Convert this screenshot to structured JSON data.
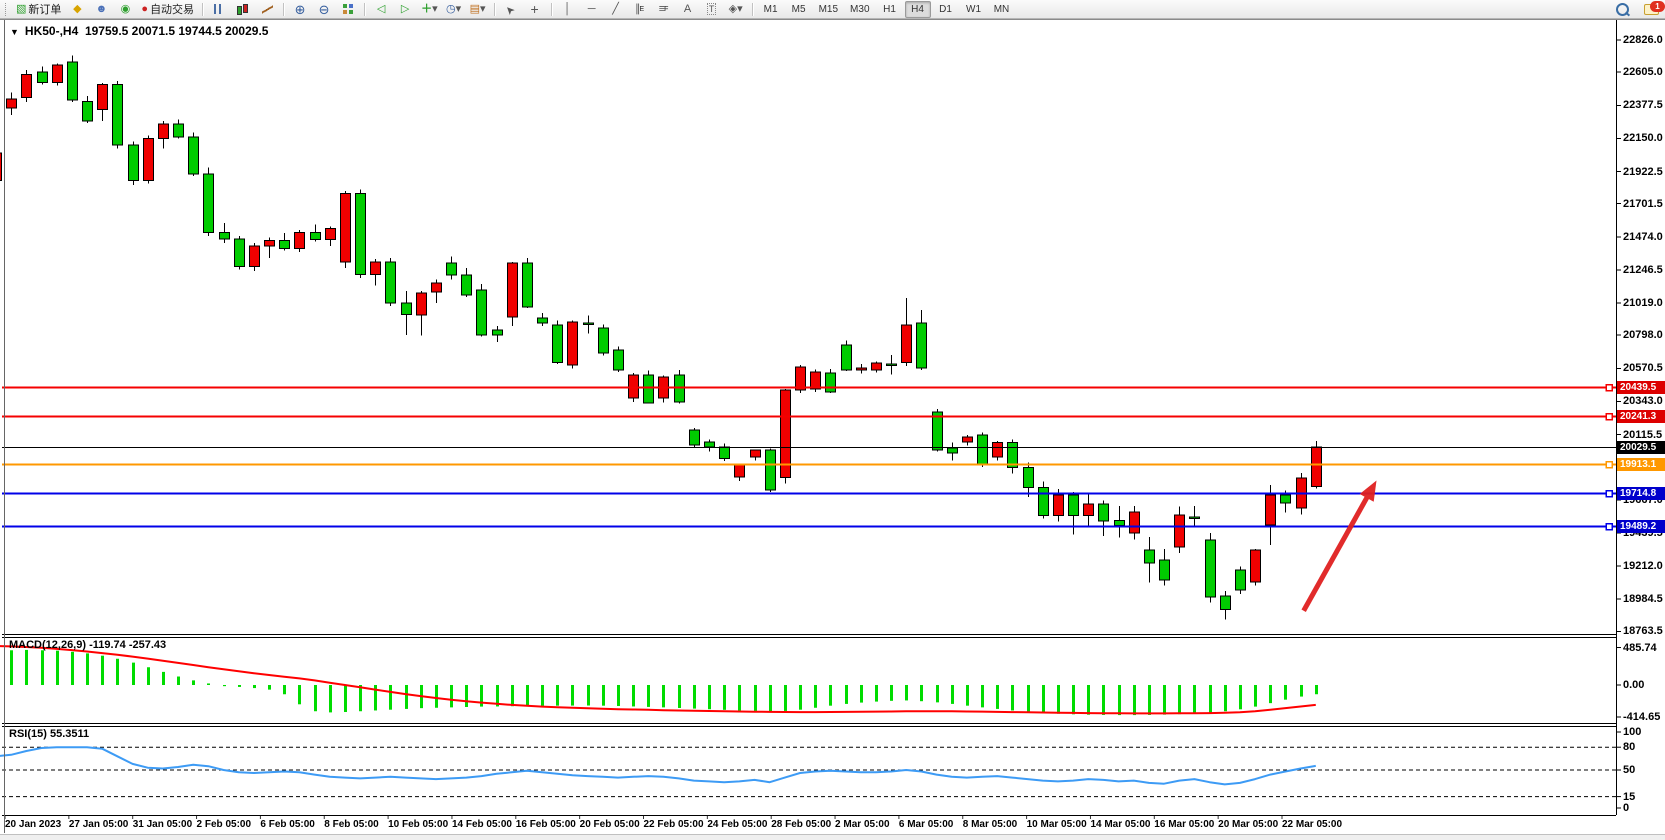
{
  "toolbar": {
    "new_order": "新订单",
    "auto_trading": "自动交易",
    "timeframes": [
      "M1",
      "M5",
      "M15",
      "M30",
      "H1",
      "H4",
      "D1",
      "W1",
      "MN"
    ],
    "active_timeframe": "H4",
    "chat_badge": "1",
    "glyphs": {
      "new_order_icon": "▧",
      "market_watch": "◆",
      "terminal": "☻",
      "signal": "◉",
      "auto_play": "●",
      "zoom_in": "⊕",
      "zoom_out": "⊖",
      "tile": "▦",
      "shift_left": "◁",
      "shift_right": "▷",
      "indicators": "＋",
      "clock": "◷",
      "template": "▤",
      "caret": "▾",
      "cursor": "➤",
      "crosshair": "+",
      "vline": "│",
      "hline": "─",
      "trendline": "╱",
      "channel": "∥",
      "channel_sub": "E",
      "fibonacci": "≡",
      "fibonacci_sub": "F",
      "text": "A",
      "label": "T",
      "arrows": "◈"
    }
  },
  "chart": {
    "dropdown_marker": "▼",
    "title_symbol": "HK50-,H4",
    "title_ohlc": "19759.5 20071.5 19744.5 20029.5",
    "macd_label": "MACD(12,26,9)",
    "macd_values": "-119.74 -257.43",
    "rsi_label": "RSI(15)",
    "rsi_value": "55.3511"
  },
  "chart_data": [
    {
      "type": "candlestick",
      "symbol": "HK50-,H4",
      "bull_color": "#f00000",
      "bear_color": "#00cc00",
      "last_ohlc": [
        19759.5,
        20071.5,
        19744.5,
        20029.5
      ],
      "price_axis_ticks": [
        "22826.0",
        "22605.0",
        "22377.5",
        "22150.0",
        "21922.5",
        "21701.5",
        "21474.0",
        "21246.5",
        "21019.0",
        "20798.0",
        "20570.5",
        "20343.0",
        "20115.5",
        "19888.0",
        "19667.0",
        "19439.5",
        "19212.0",
        "18984.5",
        "18763.5"
      ],
      "levels": [
        {
          "label": "20439.5",
          "value": 20439.5,
          "badge": "#dd0000",
          "text": "#ffffff",
          "line": "#f50000",
          "lw": 2,
          "marker": true
        },
        {
          "label": "20241.3",
          "value": 20241.3,
          "badge": "#dd0000",
          "text": "#ffffff",
          "line": "#f50000",
          "lw": 2,
          "marker": true
        },
        {
          "label": "20029.5",
          "value": 20029.5,
          "badge": "#000000",
          "text": "#ffffff",
          "line": "#000000",
          "lw": 1,
          "marker": false
        },
        {
          "label": "19913.1",
          "value": 19913.1,
          "badge": "#ff9800",
          "text": "#ffffff",
          "line": "#ff9800",
          "lw": 2,
          "marker": true
        },
        {
          "label": "19714.8",
          "value": 19714.8,
          "badge": "#0000cc",
          "text": "#ffffff",
          "line": "#0000e8",
          "lw": 2,
          "marker": true
        },
        {
          "label": "19489.2",
          "value": 19489.2,
          "badge": "#0000cc",
          "text": "#ffffff",
          "line": "#0000e8",
          "lw": 2,
          "marker": true
        }
      ],
      "arrow_annotation": {
        "i1": 86.2,
        "p1": 18905,
        "i2": 91.0,
        "p2": 19800,
        "color": "#e02020"
      },
      "ohlc": [
        [
          21860,
          22070,
          21830,
          22050
        ],
        [
          22360,
          22465,
          22310,
          22420
        ],
        [
          22430,
          22620,
          22400,
          22590
        ],
        [
          22605,
          22645,
          22520,
          22535
        ],
        [
          22535,
          22665,
          22515,
          22655
        ],
        [
          22676,
          22721,
          22400,
          22414
        ],
        [
          22405,
          22440,
          22255,
          22270
        ],
        [
          22350,
          22530,
          22270,
          22520
        ],
        [
          22520,
          22545,
          22080,
          22105
        ],
        [
          22105,
          22130,
          21830,
          21860
        ],
        [
          21860,
          22170,
          21840,
          22150
        ],
        [
          22150,
          22270,
          22080,
          22250
        ],
        [
          22250,
          22280,
          22150,
          22160
        ],
        [
          22160,
          22190,
          21890,
          21905
        ],
        [
          21905,
          21950,
          21480,
          21505
        ],
        [
          21505,
          21570,
          21430,
          21460
        ],
        [
          21460,
          21480,
          21250,
          21270
        ],
        [
          21270,
          21430,
          21240,
          21410
        ],
        [
          21410,
          21470,
          21330,
          21450
        ],
        [
          21450,
          21500,
          21380,
          21395
        ],
        [
          21395,
          21520,
          21370,
          21505
        ],
        [
          21505,
          21560,
          21440,
          21455
        ],
        [
          21455,
          21545,
          21410,
          21530
        ],
        [
          21300,
          21790,
          21260,
          21770
        ],
        [
          21770,
          21800,
          21190,
          21215
        ],
        [
          21215,
          21320,
          21140,
          21300
        ],
        [
          21300,
          21330,
          21000,
          21020
        ],
        [
          21020,
          21100,
          20800,
          20940
        ],
        [
          20936,
          21100,
          20795,
          21087
        ],
        [
          21094,
          21180,
          21020,
          21156
        ],
        [
          21294,
          21340,
          21180,
          21211
        ],
        [
          21210,
          21260,
          21060,
          21073
        ],
        [
          21107,
          21150,
          20790,
          20798
        ],
        [
          20832,
          20860,
          20750,
          20798
        ],
        [
          20922,
          21300,
          20860,
          21294
        ],
        [
          21294,
          21330,
          20985,
          20991
        ],
        [
          20915,
          20950,
          20860,
          20881
        ],
        [
          20867,
          20900,
          20600,
          20612
        ],
        [
          20592,
          20900,
          20570,
          20888
        ],
        [
          20882,
          20935,
          20810,
          20878
        ],
        [
          20846,
          20870,
          20660,
          20674
        ],
        [
          20695,
          20720,
          20545,
          20558
        ],
        [
          20366,
          20540,
          20340,
          20524
        ],
        [
          20524,
          20555,
          20328,
          20331
        ],
        [
          20366,
          20520,
          20335,
          20510
        ],
        [
          20524,
          20558,
          20330,
          20338
        ],
        [
          20145,
          20160,
          20025,
          20043
        ],
        [
          20064,
          20080,
          20000,
          20029
        ],
        [
          20030,
          20055,
          19935,
          19950
        ],
        [
          19823,
          19912,
          19796,
          19905
        ],
        [
          19960,
          20012,
          19938,
          20008
        ],
        [
          20008,
          20020,
          19722,
          19734
        ],
        [
          19820,
          20428,
          19778,
          20421
        ],
        [
          20421,
          20592,
          20400,
          20580
        ],
        [
          20428,
          20562,
          20408,
          20545
        ],
        [
          20538,
          20565,
          20400,
          20407
        ],
        [
          20730,
          20762,
          20552,
          20558
        ],
        [
          20558,
          20600,
          20536,
          20572
        ],
        [
          20559,
          20618,
          20542,
          20607
        ],
        [
          20600,
          20662,
          20528,
          20598
        ],
        [
          20610,
          21053,
          20588,
          20868
        ],
        [
          20882,
          20971,
          20560,
          20572
        ],
        [
          20270,
          20292,
          20000,
          20009
        ],
        [
          20023,
          20062,
          19938,
          19989
        ],
        [
          20064,
          20112,
          20040,
          20098
        ],
        [
          20112,
          20130,
          19893,
          19906
        ],
        [
          19960,
          20072,
          19938,
          20060
        ],
        [
          20060,
          20082,
          19848,
          19890
        ],
        [
          19890,
          19922,
          19688,
          19750
        ],
        [
          19750,
          19792,
          19538,
          19560
        ],
        [
          19560,
          19742,
          19518,
          19700
        ],
        [
          19700,
          19722,
          19428,
          19560
        ],
        [
          19560,
          19702,
          19478,
          19640
        ],
        [
          19640,
          19662,
          19418,
          19520
        ],
        [
          19525,
          19625,
          19408,
          19490
        ],
        [
          19440,
          19625,
          19395,
          19583
        ],
        [
          19322,
          19410,
          19100,
          19232
        ],
        [
          19255,
          19330,
          19080,
          19115
        ],
        [
          19342,
          19620,
          19300,
          19562
        ],
        [
          19548,
          19625,
          19478,
          19540
        ],
        [
          19390,
          19440,
          18960,
          19000
        ],
        [
          19005,
          19040,
          18845,
          18915
        ],
        [
          19184,
          19210,
          19020,
          19047
        ],
        [
          19102,
          19330,
          19080,
          19322
        ],
        [
          19494,
          19768,
          19356,
          19700
        ],
        [
          19700,
          19730,
          19580,
          19645
        ],
        [
          19610,
          19850,
          19565,
          19816
        ],
        [
          19759.5,
          20071.5,
          19744.5,
          20029.5
        ]
      ]
    },
    {
      "type": "bar+line",
      "name": "MACD(12,26,9)",
      "current_values": "-119.74 -257.43",
      "axis_ticks": [
        "485.74",
        "0.00",
        "-414.65"
      ],
      "hist_color": "#00dc00",
      "signal_color": "#ff0000",
      "histogram": [
        445,
        450,
        455,
        450,
        445,
        430,
        410,
        380,
        340,
        290,
        230,
        170,
        110,
        60,
        20,
        -15,
        -25,
        -40,
        -60,
        -120,
        -250,
        -340,
        -355,
        -350,
        -340,
        -330,
        -320,
        -310,
        -300,
        -295,
        -290,
        -285,
        -280,
        -278,
        -275,
        -272,
        -270,
        -268,
        -267,
        -266,
        -268,
        -272,
        -278,
        -284,
        -290,
        -298,
        -306,
        -314,
        -322,
        -330,
        -336,
        -340,
        -336,
        -320,
        -295,
        -268,
        -245,
        -228,
        -215,
        -205,
        -200,
        -210,
        -225,
        -245,
        -268,
        -290,
        -310,
        -330,
        -348,
        -362,
        -372,
        -380,
        -385,
        -388,
        -390,
        -390,
        -388,
        -384,
        -378,
        -370,
        -358,
        -340,
        -315,
        -280,
        -235,
        -190,
        -150,
        -119.74
      ],
      "signal": [
        505,
        500,
        493,
        482,
        468,
        452,
        434,
        414,
        392,
        368,
        342,
        315,
        287,
        259,
        231,
        204,
        178,
        153,
        129,
        107,
        86,
        60,
        30,
        0,
        -30,
        -60,
        -90,
        -118,
        -144,
        -168,
        -190,
        -210,
        -228,
        -244,
        -258,
        -270,
        -280,
        -289,
        -296,
        -302,
        -308,
        -313,
        -318,
        -322,
        -326,
        -330,
        -334,
        -337,
        -340,
        -343,
        -346,
        -348,
        -350,
        -351,
        -351,
        -350,
        -349,
        -347,
        -345,
        -343,
        -341,
        -340,
        -340,
        -341,
        -343,
        -345,
        -348,
        -351,
        -354,
        -357,
        -360,
        -362,
        -364,
        -366,
        -367,
        -368,
        -368,
        -368,
        -367,
        -366,
        -364,
        -360,
        -352,
        -340,
        -322,
        -300,
        -278,
        -257.43
      ]
    },
    {
      "type": "line",
      "name": "RSI(15)",
      "current_value": "55.3511",
      "axis_ticks": [
        "100",
        "80",
        "50",
        "15",
        "0"
      ],
      "levels": [
        80,
        50,
        15
      ],
      "line_color": "#3d9bf5",
      "values": [
        68,
        70,
        75,
        79,
        80,
        80,
        80,
        78,
        68,
        58,
        53,
        52,
        54,
        57,
        55,
        50,
        47,
        46,
        47,
        48,
        47,
        44,
        41,
        40,
        39,
        40,
        41,
        40,
        39,
        38,
        39,
        40,
        42,
        45,
        47,
        49,
        47,
        45,
        43,
        42,
        41,
        40,
        41,
        42,
        41,
        39,
        36,
        35,
        34,
        35,
        37,
        34,
        40,
        46,
        48,
        49,
        48,
        47,
        47,
        48,
        50,
        48,
        44,
        41,
        40,
        41,
        42,
        40,
        38,
        36,
        35,
        36,
        38,
        37,
        35,
        36,
        33,
        32,
        36,
        38,
        34,
        31,
        33,
        38,
        44,
        48,
        52,
        55.3511
      ]
    },
    {
      "type": "time-axis",
      "labels": [
        "20 Jan 2023",
        "27 Jan 05:00",
        "31 Jan 05:00",
        "2 Feb 05:00",
        "6 Feb 05:00",
        "8 Feb 05:00",
        "10 Feb 05:00",
        "14 Feb 05:00",
        "16 Feb 05:00",
        "20 Feb 05:00",
        "22 Feb 05:00",
        "24 Feb 05:00",
        "28 Feb 05:00",
        "2 Mar 05:00",
        "6 Mar 05:00",
        "8 Mar 05:00",
        "10 Mar 05:00",
        "14 Mar 05:00",
        "16 Mar 05:00",
        "20 Mar 05:00",
        "22 Mar 05:00"
      ]
    }
  ]
}
